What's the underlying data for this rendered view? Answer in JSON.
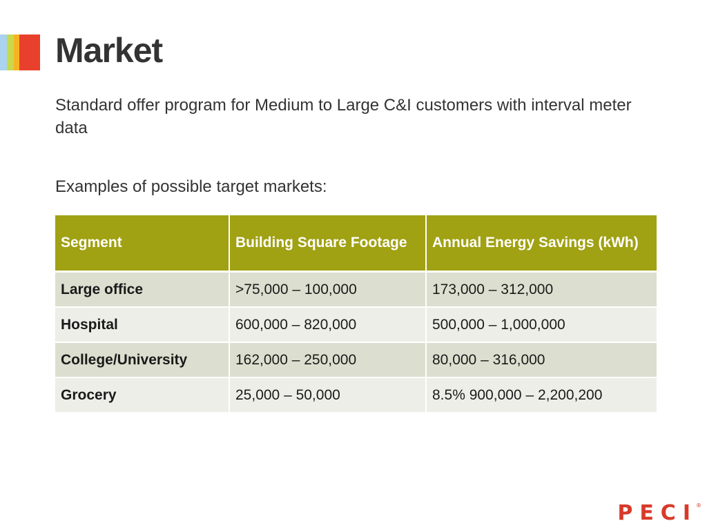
{
  "slide": {
    "title": "Market",
    "intro": "Standard offer program for Medium to Large C&I customers with interval meter data",
    "examples_label": "Examples of possible target markets:"
  },
  "table": {
    "headers": [
      "Segment",
      "Building Square Footage",
      "Annual Energy Savings (kWh)"
    ],
    "rows": [
      {
        "segment": "Large office",
        "square_footage": ">75,000 – 100,000",
        "annual_savings": "173,000 – 312,000"
      },
      {
        "segment": "Hospital",
        "square_footage": "600,000 – 820,000",
        "annual_savings": "500,000 – 1,000,000"
      },
      {
        "segment": "College/University",
        "square_footage": "162,000 – 250,000",
        "annual_savings": "80,000 – 316,000"
      },
      {
        "segment": "Grocery",
        "square_footage": "25,000 – 50,000",
        "annual_savings": "8.5% 900,000 – 2,200,200"
      }
    ]
  },
  "logo": {
    "text": "PECI",
    "mark": "®"
  },
  "colors": {
    "header_bg": "#a0a113",
    "row_odd": "#dcdfcf",
    "row_even": "#eeeee8",
    "title": "#333333",
    "logo": "#d83a2a",
    "accent_bars": [
      "#a9d3ef",
      "#c9d94a",
      "#f7b324",
      "#e8402c"
    ]
  }
}
